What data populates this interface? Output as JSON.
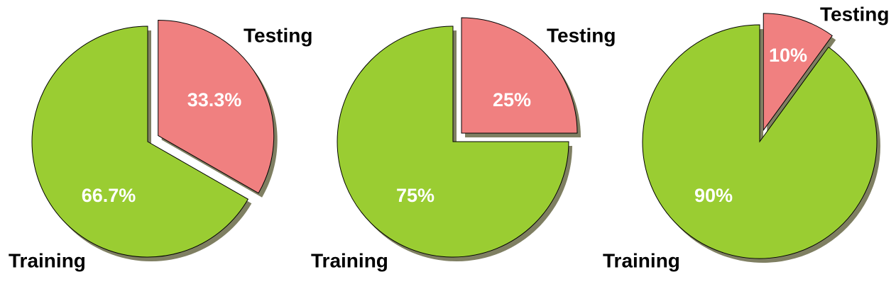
{
  "chart_data": [
    {
      "type": "pie",
      "categories": [
        "Testing",
        "Training"
      ],
      "values": [
        33.3,
        66.7
      ],
      "value_labels": [
        "33.3%",
        "66.7%"
      ],
      "colors": [
        "#f08080",
        "#9acd32"
      ]
    },
    {
      "type": "pie",
      "categories": [
        "Testing",
        "Training"
      ],
      "values": [
        25,
        75
      ],
      "value_labels": [
        "25%",
        "75%"
      ],
      "colors": [
        "#f08080",
        "#9acd32"
      ]
    },
    {
      "type": "pie",
      "categories": [
        "Testing",
        "Training"
      ],
      "values": [
        10,
        90
      ],
      "value_labels": [
        "10%",
        "90%"
      ],
      "colors": [
        "#f08080",
        "#9acd32"
      ]
    }
  ]
}
